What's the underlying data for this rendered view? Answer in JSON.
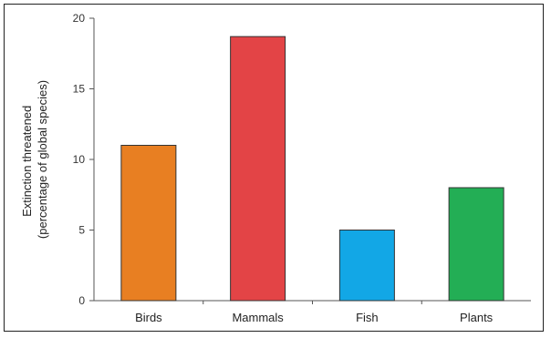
{
  "chart_data": {
    "type": "bar",
    "categories": [
      "Birds",
      "Mammals",
      "Fish",
      "Plants"
    ],
    "values": [
      11,
      18.7,
      5,
      8
    ],
    "colors": [
      "#e87f22",
      "#e34446",
      "#12a7e6",
      "#23ae55"
    ],
    "title": "",
    "xlabel": "",
    "ylabel_lines": [
      "Extinction threatened",
      "(percentage of global species)"
    ],
    "ylim": [
      0,
      20
    ],
    "yticks": [
      0,
      5,
      10,
      15,
      20
    ],
    "grid": false
  }
}
